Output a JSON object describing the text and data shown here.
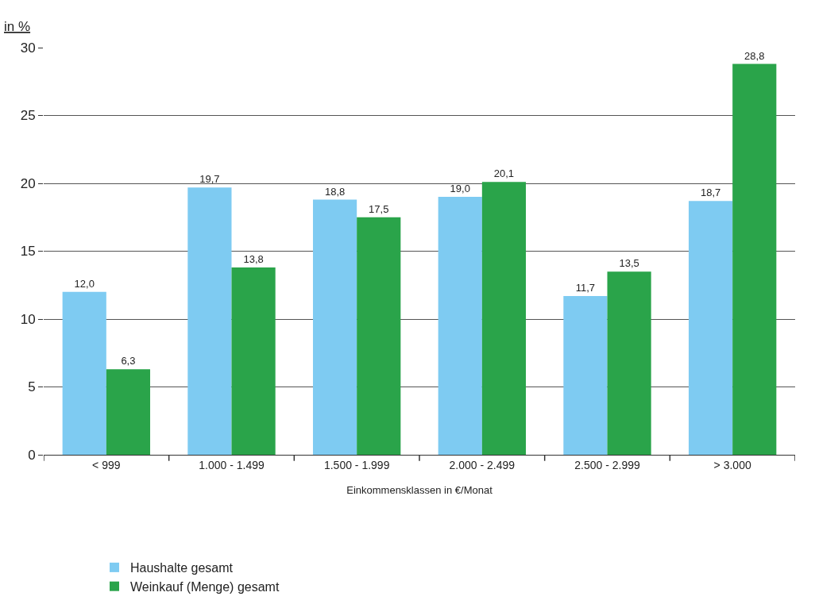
{
  "chart_data": {
    "type": "bar",
    "ylabel": "in %",
    "xlabel": "Einkommensklassen in €/Monat",
    "categories": [
      "< 999",
      "1.000 - 1.499",
      "1.500 - 1.999",
      "2.000 - 2.499",
      "2.500 - 2.999",
      "> 3.000"
    ],
    "series": [
      {
        "name": "Haushalte gesamt",
        "color": "#7ecbf2",
        "values": [
          12.0,
          19.7,
          18.8,
          19.0,
          11.7,
          18.7
        ],
        "value_labels": [
          "12,0",
          "19,7",
          "18,8",
          "19,0",
          "11,7",
          "18,7"
        ]
      },
      {
        "name": "Weinkauf (Menge) gesamt",
        "color": "#2aa44a",
        "values": [
          6.3,
          13.8,
          17.5,
          20.1,
          13.5,
          28.8
        ],
        "value_labels": [
          "6,3",
          "13,8",
          "17,5",
          "20,1",
          "13,5",
          "28,8"
        ]
      }
    ],
    "ylim": [
      0,
      30
    ],
    "yticks": [
      0,
      5,
      10,
      15,
      20,
      25,
      30
    ],
    "grid": "y",
    "legend": "bottom"
  }
}
